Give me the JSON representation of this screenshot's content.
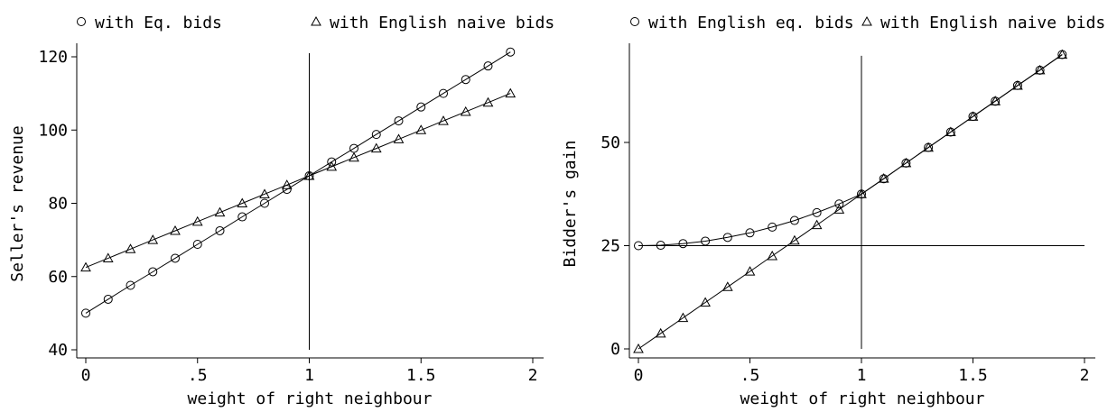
{
  "chart_data": [
    {
      "type": "line",
      "title": "",
      "xlabel": "weight of right neighbour",
      "ylabel": "Seller's revenue",
      "xlim": [
        0,
        2
      ],
      "ylim": [
        40,
        120
      ],
      "x_ticks": [
        0,
        0.5,
        1,
        1.5,
        2
      ],
      "x_tick_labels": [
        "0",
        ".5",
        "1",
        "1.5",
        "2"
      ],
      "y_ticks": [
        40,
        60,
        80,
        100,
        120
      ],
      "y_tick_labels": [
        "40",
        "60",
        "80",
        "100",
        "120"
      ],
      "grid": false,
      "legend_position": "top",
      "reference_lines": {
        "vertical": [
          {
            "x": 1,
            "y_from": 40,
            "y_to": 121
          }
        ]
      },
      "x": [
        0,
        0.1,
        0.2,
        0.3,
        0.4,
        0.5,
        0.6,
        0.7,
        0.8,
        0.9,
        1.0,
        1.1,
        1.2,
        1.3,
        1.4,
        1.5,
        1.6,
        1.7,
        1.8,
        1.9
      ],
      "series": [
        {
          "name": "with Eq. bids",
          "marker": "circle",
          "values": [
            50.0,
            53.8,
            57.6,
            61.3,
            65.0,
            68.8,
            72.5,
            76.3,
            80.0,
            83.8,
            87.5,
            91.3,
            95.0,
            98.8,
            102.5,
            106.3,
            110.0,
            113.8,
            117.5,
            121.3
          ]
        },
        {
          "name": "with English naive bids",
          "marker": "triangle",
          "values": [
            62.5,
            65.0,
            67.5,
            70.0,
            72.5,
            75.0,
            77.5,
            80.0,
            82.5,
            85.0,
            87.5,
            90.0,
            92.5,
            95.0,
            97.5,
            100.0,
            102.5,
            105.0,
            107.5,
            110.0
          ]
        }
      ]
    },
    {
      "type": "line",
      "title": "",
      "xlabel": "weight of right neighbour",
      "ylabel": "Bidder's gain",
      "xlim": [
        0,
        2
      ],
      "ylim": [
        0,
        72
      ],
      "x_ticks": [
        0,
        0.5,
        1,
        1.5,
        2
      ],
      "x_tick_labels": [
        "0",
        ".5",
        "1",
        "1.5",
        "2"
      ],
      "y_ticks": [
        0,
        25,
        50
      ],
      "y_tick_labels": [
        "0",
        "25",
        "50"
      ],
      "grid": false,
      "legend_position": "top",
      "reference_lines": {
        "vertical": [
          {
            "x": 1,
            "y_from": 0,
            "y_to": 71
          }
        ],
        "horizontal": [
          {
            "y": 25,
            "x_from": 0,
            "x_to": 2
          }
        ]
      },
      "x": [
        0,
        0.1,
        0.2,
        0.3,
        0.4,
        0.5,
        0.6,
        0.7,
        0.8,
        0.9,
        1.0,
        1.1,
        1.2,
        1.3,
        1.4,
        1.5,
        1.6,
        1.7,
        1.8,
        1.9
      ],
      "series": [
        {
          "name": "with English eq. bids",
          "marker": "circle",
          "values": [
            25.0,
            25.1,
            25.5,
            26.1,
            27.0,
            28.1,
            29.5,
            31.1,
            33.0,
            35.1,
            37.5,
            41.2,
            45.0,
            48.8,
            52.5,
            56.3,
            60.0,
            63.8,
            67.5,
            71.3
          ]
        },
        {
          "name": "with English naive bids",
          "marker": "triangle",
          "values": [
            0.0,
            3.75,
            7.5,
            11.25,
            15.0,
            18.75,
            22.5,
            26.25,
            30.0,
            33.75,
            37.5,
            41.25,
            45.0,
            48.75,
            52.5,
            56.25,
            60.0,
            63.75,
            67.5,
            71.25
          ]
        }
      ]
    }
  ]
}
